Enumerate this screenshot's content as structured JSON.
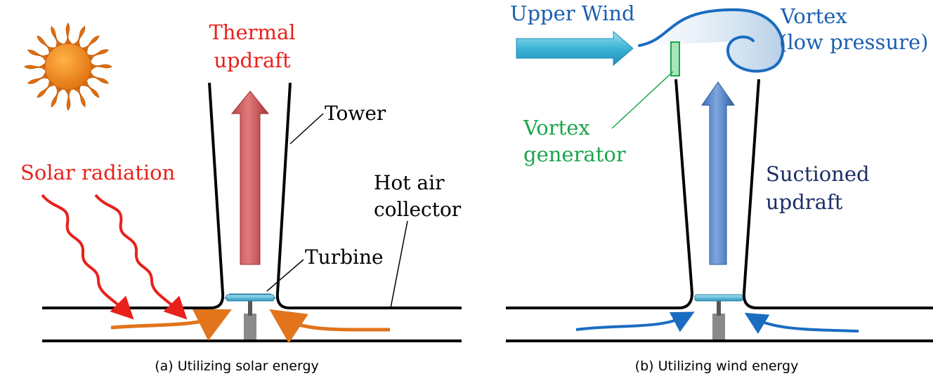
{
  "panel_a": {
    "caption": "(a) Utilizing solar energy",
    "labels": {
      "thermal_line1": "Thermal",
      "thermal_line2": "updraft",
      "tower": "Tower",
      "solar_radiation": "Solar radiation",
      "hot_air_line1": "Hot air",
      "hot_air_line2": "collector",
      "turbine": "Turbine"
    }
  },
  "panel_b": {
    "caption": "(b) Utilizing wind energy",
    "labels": {
      "upper_wind": "Upper Wind",
      "vortex_line1": "Vortex",
      "vortex_line2": "(low pressure)",
      "vortex_gen_line1": "Vortex",
      "vortex_gen_line2": "generator",
      "suctioned_line1": "Suctioned",
      "suctioned_line2": "updraft"
    }
  },
  "colors": {
    "red": "#e8211b",
    "orange": "#e2741b",
    "blue_text": "#1a5fb0",
    "navy_text": "#1b2f63",
    "green": "#19a64a",
    "sun": "#f08a1c",
    "turbine": "#4fb6d8",
    "pole": "#8a8a8a"
  },
  "icons": [
    "sun-icon",
    "turbine-icon"
  ]
}
